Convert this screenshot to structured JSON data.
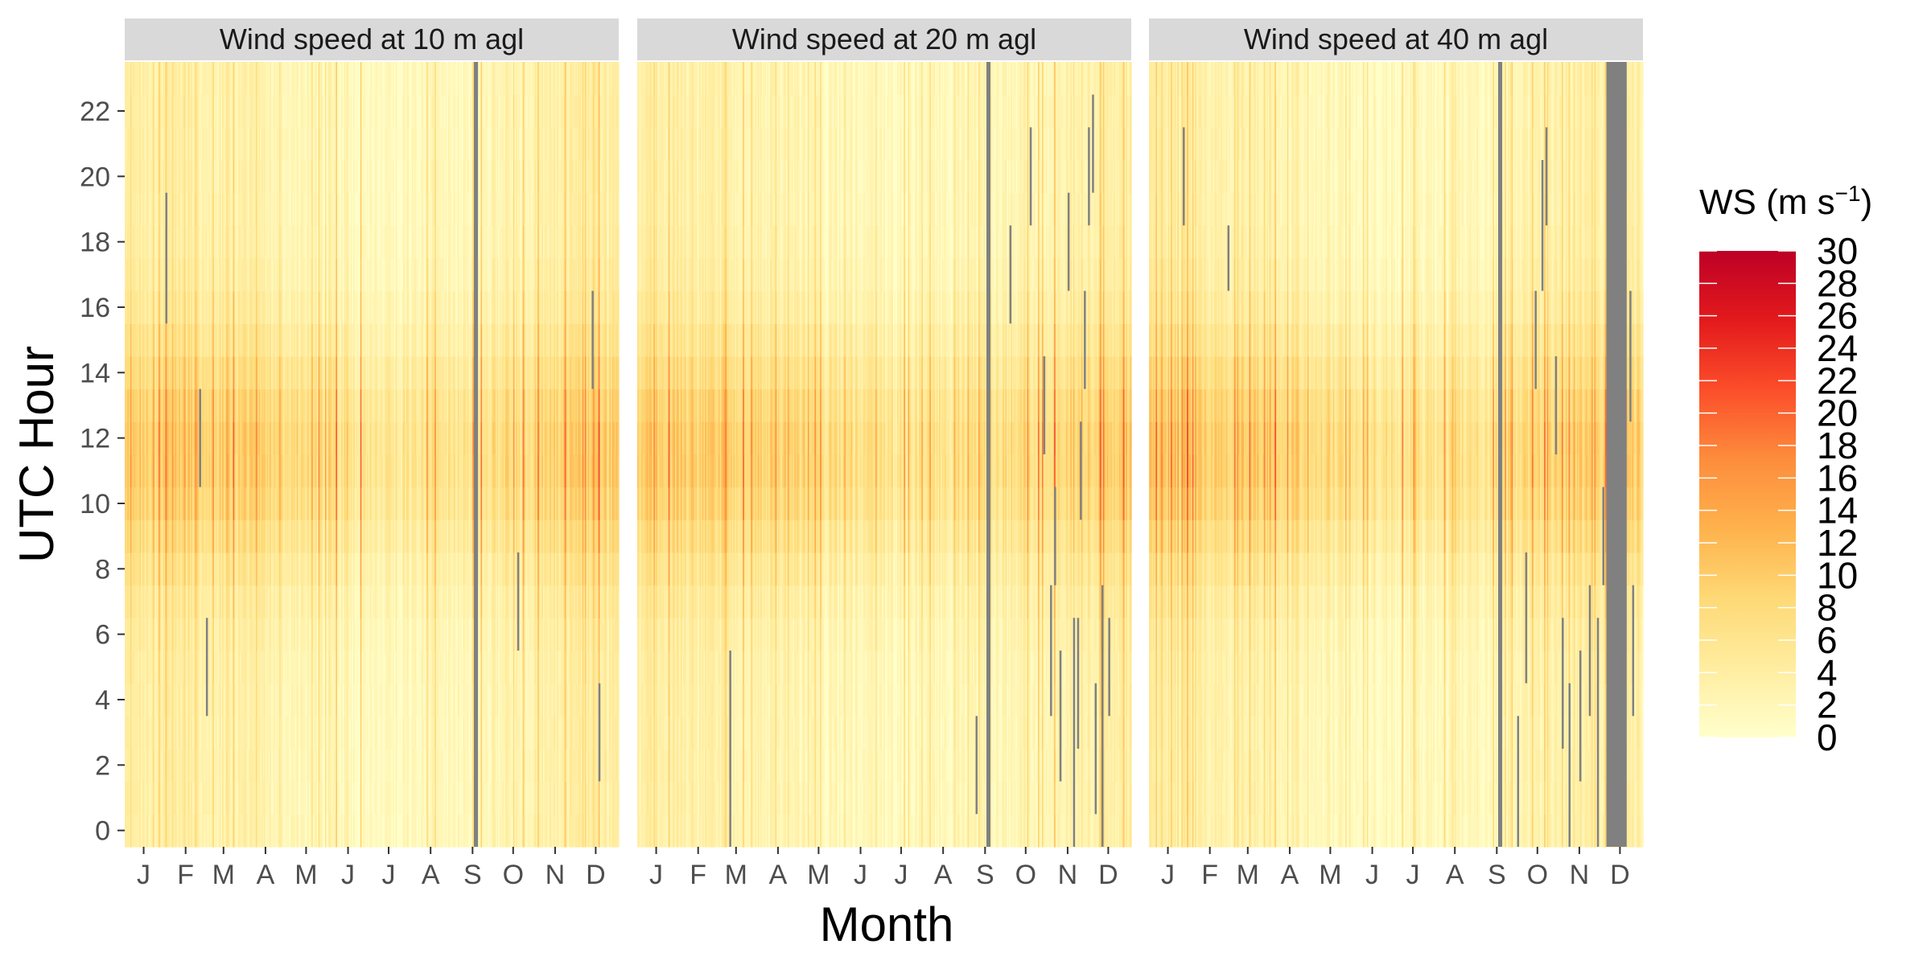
{
  "chart_data": {
    "type": "heatmap",
    "xlabel": "Month",
    "ylabel": "UTC Hour",
    "x_ticks": [
      "J",
      "F",
      "M",
      "A",
      "M",
      "J",
      "J",
      "A",
      "S",
      "O",
      "N",
      "D"
    ],
    "y_ticks": [
      0,
      2,
      4,
      6,
      8,
      10,
      12,
      14,
      16,
      18,
      20,
      22
    ],
    "y_range": [
      0,
      23
    ],
    "legend": {
      "title": "WS (m s",
      "title_sup": "−1",
      "title_close": ")",
      "min": 0,
      "max": 30,
      "ticks": [
        0,
        2,
        4,
        6,
        8,
        10,
        12,
        14,
        16,
        18,
        20,
        22,
        24,
        26,
        28,
        30
      ],
      "colors": [
        "#ffffcc",
        "#ffeda0",
        "#fed976",
        "#feb24c",
        "#fd8d3c",
        "#fc4e2a",
        "#e31a1c",
        "#bd0026"
      ],
      "placement": "right"
    },
    "na_color": "#808080",
    "panels": [
      {
        "title": "Wind speed at 10 m agl",
        "missing_days": [
          [
            258,
            260
          ]
        ],
        "missing_cells": [
          [
            30,
            16,
            19
          ],
          [
            55,
            11,
            13
          ],
          [
            60,
            4,
            6
          ],
          [
            290,
            6,
            8
          ],
          [
            345,
            14,
            16
          ],
          [
            350,
            2,
            4
          ]
        ]
      },
      {
        "title": "Wind speed at 20 m agl",
        "missing_days": [
          [
            258,
            260
          ]
        ],
        "missing_cells": [
          [
            68,
            0,
            5
          ],
          [
            250,
            1,
            3
          ],
          [
            275,
            16,
            18
          ],
          [
            290,
            19,
            21
          ],
          [
            300,
            12,
            14
          ],
          [
            305,
            4,
            7
          ],
          [
            308,
            8,
            10
          ],
          [
            312,
            2,
            5
          ],
          [
            318,
            17,
            19
          ],
          [
            322,
            0,
            6
          ],
          [
            325,
            3,
            6
          ],
          [
            327,
            10,
            12
          ],
          [
            330,
            14,
            16
          ],
          [
            333,
            19,
            21
          ],
          [
            336,
            20,
            22
          ],
          [
            338,
            1,
            4
          ],
          [
            343,
            0,
            7
          ],
          [
            348,
            4,
            6
          ]
        ]
      },
      {
        "title": "Wind speed at 40 m agl",
        "missing_days": [
          [
            258,
            260
          ],
          [
            338,
            352
          ]
        ],
        "missing_cells": [
          [
            25,
            19,
            21
          ],
          [
            58,
            17,
            18
          ],
          [
            272,
            0,
            3
          ],
          [
            278,
            5,
            8
          ],
          [
            285,
            14,
            16
          ],
          [
            290,
            17,
            20
          ],
          [
            293,
            19,
            21
          ],
          [
            300,
            12,
            14
          ],
          [
            305,
            3,
            6
          ],
          [
            310,
            0,
            4
          ],
          [
            318,
            2,
            5
          ],
          [
            325,
            4,
            7
          ],
          [
            331,
            0,
            6
          ],
          [
            335,
            8,
            10
          ],
          [
            355,
            13,
            16
          ],
          [
            357,
            4,
            7
          ]
        ]
      }
    ]
  }
}
